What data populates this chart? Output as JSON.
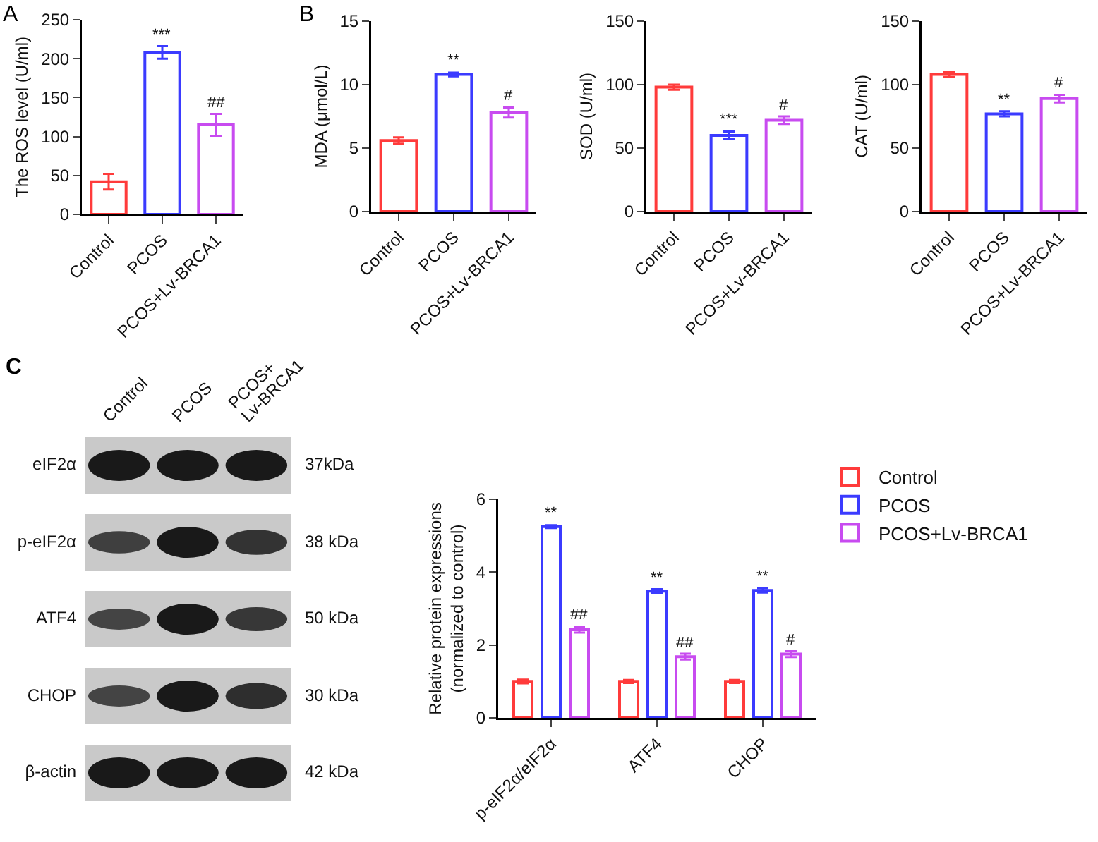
{
  "chart_data": [
    {
      "type": "bar",
      "ylabel": "The ROS level (U/ml)",
      "categories": [
        "Control",
        "PCOS",
        "PCOS+Lv-BRCA1"
      ],
      "values": [
        42,
        208,
        115
      ],
      "colors": [
        "#ff3b3b",
        "#3b3bff",
        "#c84bf0"
      ],
      "errors": [
        10,
        8,
        14
      ],
      "ylim": [
        0,
        250
      ],
      "yticks": [
        0,
        50,
        100,
        150,
        200,
        250
      ],
      "annotations": [
        "A",
        {
          "text": "***",
          "x": "PCOS",
          "y": 208
        },
        {
          "text": "##",
          "x": "PCOS+Lv-BRCA1",
          "y": 115
        }
      ]
    },
    {
      "type": "bar",
      "ylabel": "MDA (μmol/L)",
      "categories": [
        "Control",
        "PCOS",
        "PCOS+Lv-BRCA1"
      ],
      "values": [
        5.6,
        10.8,
        7.8
      ],
      "colors": [
        "#ff3b3b",
        "#3b3bff",
        "#c84bf0"
      ],
      "errors": [
        0.25,
        0.15,
        0.4
      ],
      "ylim": [
        0,
        15
      ],
      "yticks": [
        0,
        5,
        10,
        15
      ],
      "annotations": [
        "B",
        {
          "text": "**",
          "x": "PCOS",
          "y": 10.8
        },
        {
          "text": "#",
          "x": "PCOS+Lv-BRCA1",
          "y": 7.8
        }
      ]
    },
    {
      "type": "bar",
      "ylabel": "SOD (U/ml)",
      "categories": [
        "Control",
        "PCOS",
        "PCOS+Lv-BRCA1"
      ],
      "values": [
        98,
        60,
        72
      ],
      "colors": [
        "#ff3b3b",
        "#3b3bff",
        "#c84bf0"
      ],
      "errors": [
        2,
        3,
        3
      ],
      "ylim": [
        0,
        150
      ],
      "yticks": [
        0,
        50,
        100,
        150
      ],
      "annotations": [
        {
          "text": "***",
          "x": "PCOS",
          "y": 60
        },
        {
          "text": "#",
          "x": "PCOS+Lv-BRCA1",
          "y": 72
        }
      ]
    },
    {
      "type": "bar",
      "ylabel": "CAT (U/ml)",
      "categories": [
        "Control",
        "PCOS",
        "PCOS+Lv-BRCA1"
      ],
      "values": [
        108,
        77,
        89
      ],
      "colors": [
        "#ff3b3b",
        "#3b3bff",
        "#c84bf0"
      ],
      "errors": [
        2,
        2,
        3
      ],
      "ylim": [
        0,
        150
      ],
      "yticks": [
        0,
        50,
        100,
        150
      ],
      "annotations": [
        {
          "text": "**",
          "x": "PCOS",
          "y": 77
        },
        {
          "text": "#",
          "x": "PCOS+Lv-BRCA1",
          "y": 89
        }
      ]
    },
    {
      "type": "bar",
      "ylabel": "Relative protein expressions\n(normalized to control)",
      "categories": [
        "p-eIF2α/eIF2α",
        "ATF4",
        "CHOP"
      ],
      "ylim": [
        0,
        6
      ],
      "yticks": [
        0,
        2,
        4,
        6
      ],
      "legend": "top right",
      "series": [
        {
          "name": "Control",
          "color": "#ff3b3b",
          "values": [
            1,
            1,
            1
          ],
          "errors": [
            0.05,
            0.04,
            0.04
          ]
        },
        {
          "name": "PCOS",
          "color": "#3b3bff",
          "values": [
            5.25,
            3.48,
            3.5
          ],
          "errors": [
            0.04,
            0.05,
            0.06
          ]
        },
        {
          "name": "PCOS+Lv-BRCA1",
          "color": "#c84bf0",
          "values": [
            2.42,
            1.68,
            1.75
          ],
          "errors": [
            0.08,
            0.08,
            0.08
          ]
        }
      ],
      "annotations": [
        {
          "text": "**",
          "x": "p-eIF2α/eIF2α",
          "y": 5.25
        },
        "##",
        {
          "text": "**",
          "x": "ATF4",
          "y": 3.48
        },
        "##",
        {
          "text": "**",
          "x": "CHOP",
          "y": 3.5
        },
        "#"
      ]
    },
    {
      "type": "other",
      "annotations": [
        "C"
      ],
      "categories": [
        "Control",
        "PCOS",
        "PCOS+ Lv-BRCA1"
      ],
      "y_categories": [
        "eIF2α",
        "p-eIF2α",
        "ATF4",
        "CHOP",
        "β-actin"
      ],
      "y2_categories": [
        "37kDa",
        "38 kDa",
        "50 kDa",
        "30 kDa",
        "42 kDa"
      ]
    }
  ]
}
